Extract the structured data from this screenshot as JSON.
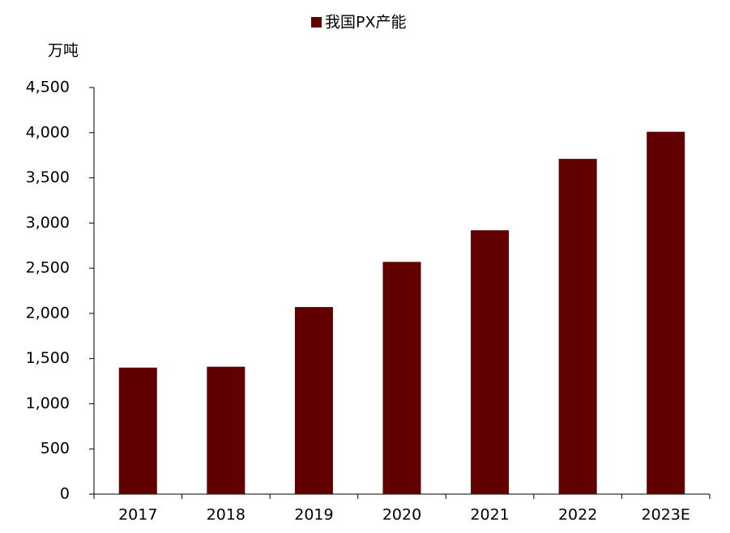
{
  "chart_data": {
    "type": "bar",
    "series": [
      {
        "name": "我国PX产能",
        "color": "#600000",
        "values": [
          1400,
          1410,
          2070,
          2570,
          2920,
          3710,
          4010
        ]
      }
    ],
    "categories": [
      "2017",
      "2018",
      "2019",
      "2020",
      "2021",
      "2022",
      "2023E"
    ],
    "y_label": "万吨",
    "ylim": [
      0,
      4500
    ],
    "yticks": [
      0,
      500,
      {
        "value": 1000,
        "label": "1,000"
      },
      {
        "value": 1500,
        "label": "1,500"
      },
      {
        "value": 2000,
        "label": "2,000"
      },
      {
        "value": 2500,
        "label": "2,500"
      },
      {
        "value": 3000,
        "label": "3,000"
      },
      {
        "value": 3500,
        "label": "3,500"
      },
      {
        "value": 4000,
        "label": "4,000"
      },
      {
        "value": 4500,
        "label": "4,500"
      }
    ],
    "legend": "top"
  }
}
